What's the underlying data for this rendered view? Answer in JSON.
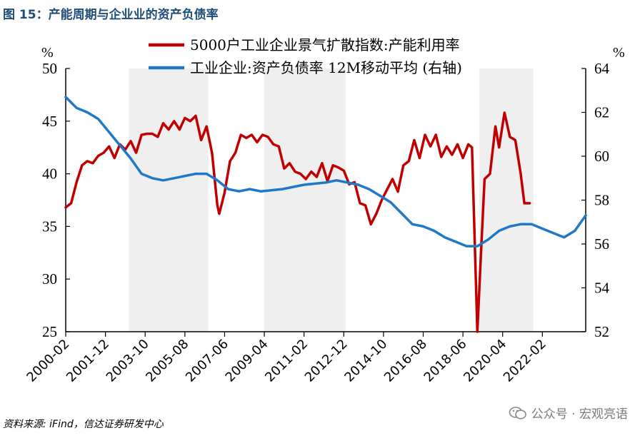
{
  "figure_title": "图 15：产能周期与企业业的资产负债率",
  "source": "资料来源: iFind，信达证券研发中心",
  "watermark": {
    "text": "公众号 · 宏观亮语",
    "icon": "wechat-icon"
  },
  "chart_data": {
    "type": "line",
    "left_axis": {
      "unit": "%",
      "ylim": [
        25,
        50
      ],
      "ticks": [
        25,
        30,
        35,
        40,
        45,
        50
      ]
    },
    "right_axis": {
      "unit": "%",
      "ylim": [
        52,
        64
      ],
      "ticks": [
        52,
        54,
        56,
        58,
        60,
        62,
        64
      ]
    },
    "x_range": [
      "2000-02",
      "2024-02"
    ],
    "x_ticks": [
      "2000-02",
      "2001-12",
      "2003-10",
      "2005-08",
      "2007-06",
      "2009-04",
      "2011-02",
      "2012-12",
      "2014-10",
      "2016-08",
      "2018-06",
      "2020-04",
      "2022-02"
    ],
    "shaded_periods": [
      [
        "2003-01",
        "2006-09"
      ],
      [
        "2009-04",
        "2013-01"
      ],
      [
        "2019-03",
        "2021-09"
      ]
    ],
    "legend_position": "top",
    "series": [
      {
        "name": "5000户工业企业景气扩散指数:产能利用率",
        "axis": "left",
        "color": "#c00000",
        "points": [
          [
            "2000-02",
            36.8
          ],
          [
            "2000-05",
            37.2
          ],
          [
            "2000-08",
            39.2
          ],
          [
            "2000-11",
            40.8
          ],
          [
            "2001-02",
            41.2
          ],
          [
            "2001-05",
            41.0
          ],
          [
            "2001-08",
            41.7
          ],
          [
            "2001-11",
            42.0
          ],
          [
            "2002-02",
            42.6
          ],
          [
            "2002-05",
            41.5
          ],
          [
            "2002-08",
            42.8
          ],
          [
            "2002-11",
            42.3
          ],
          [
            "2003-02",
            43.1
          ],
          [
            "2003-05",
            42.0
          ],
          [
            "2003-08",
            43.7
          ],
          [
            "2003-11",
            43.8
          ],
          [
            "2004-02",
            43.8
          ],
          [
            "2004-05",
            43.5
          ],
          [
            "2004-08",
            44.8
          ],
          [
            "2004-11",
            44.2
          ],
          [
            "2005-02",
            45.0
          ],
          [
            "2005-05",
            44.2
          ],
          [
            "2005-08",
            45.3
          ],
          [
            "2005-11",
            45.0
          ],
          [
            "2006-02",
            45.5
          ],
          [
            "2006-05",
            43.2
          ],
          [
            "2006-08",
            44.5
          ],
          [
            "2006-11",
            42.0
          ],
          [
            "2007-02",
            37.0
          ],
          [
            "2007-03",
            36.2
          ],
          [
            "2007-06",
            38.2
          ],
          [
            "2007-09",
            41.2
          ],
          [
            "2007-12",
            42.0
          ],
          [
            "2008-03",
            43.7
          ],
          [
            "2008-06",
            43.4
          ],
          [
            "2008-09",
            43.7
          ],
          [
            "2008-12",
            43.0
          ],
          [
            "2009-03",
            43.7
          ],
          [
            "2009-06",
            43.5
          ],
          [
            "2009-09",
            42.8
          ],
          [
            "2009-12",
            42.6
          ],
          [
            "2010-03",
            40.5
          ],
          [
            "2010-06",
            41.0
          ],
          [
            "2010-09",
            40.2
          ],
          [
            "2010-12",
            40.0
          ],
          [
            "2011-03",
            39.5
          ],
          [
            "2011-06",
            40.2
          ],
          [
            "2011-09",
            39.7
          ],
          [
            "2011-12",
            41.0
          ],
          [
            "2012-03",
            39.3
          ],
          [
            "2012-06",
            40.8
          ],
          [
            "2012-09",
            40.6
          ],
          [
            "2012-12",
            40.3
          ],
          [
            "2013-03",
            39.0
          ],
          [
            "2013-06",
            39.2
          ],
          [
            "2013-09",
            37.2
          ],
          [
            "2013-12",
            37.0
          ],
          [
            "2014-03",
            35.2
          ],
          [
            "2014-06",
            36.2
          ],
          [
            "2014-09",
            37.5
          ],
          [
            "2014-12",
            38.5
          ],
          [
            "2015-03",
            39.5
          ],
          [
            "2015-06",
            38.3
          ],
          [
            "2015-09",
            40.8
          ],
          [
            "2015-12",
            41.2
          ],
          [
            "2016-03",
            43.2
          ],
          [
            "2016-06",
            41.5
          ],
          [
            "2016-09",
            43.7
          ],
          [
            "2016-12",
            42.6
          ],
          [
            "2017-03",
            43.7
          ],
          [
            "2017-06",
            41.6
          ],
          [
            "2017-09",
            42.6
          ],
          [
            "2017-12",
            41.8
          ],
          [
            "2018-03",
            42.8
          ],
          [
            "2018-06",
            41.5
          ],
          [
            "2018-09",
            42.8
          ],
          [
            "2018-11",
            42.5
          ],
          [
            "2019-02",
            25.0
          ],
          [
            "2019-04",
            32.5
          ],
          [
            "2019-06",
            39.5
          ],
          [
            "2019-09",
            40.0
          ],
          [
            "2019-12",
            44.5
          ],
          [
            "2020-02",
            42.5
          ],
          [
            "2020-05",
            45.8
          ],
          [
            "2020-08",
            43.5
          ],
          [
            "2020-11",
            43.2
          ],
          [
            "2021-02",
            40.0
          ],
          [
            "2021-04",
            37.2
          ],
          [
            "2021-07",
            37.2
          ]
        ]
      },
      {
        "name": "工业企业:资产负债率 12M移动平均 (右轴)",
        "axis": "right",
        "color": "#1f78c8",
        "points": [
          [
            "2000-02",
            62.7
          ],
          [
            "2000-08",
            62.2
          ],
          [
            "2001-02",
            62.0
          ],
          [
            "2001-08",
            61.7
          ],
          [
            "2002-02",
            61.1
          ],
          [
            "2002-08",
            60.5
          ],
          [
            "2003-02",
            59.9
          ],
          [
            "2003-08",
            59.2
          ],
          [
            "2004-02",
            59.0
          ],
          [
            "2004-08",
            58.9
          ],
          [
            "2005-02",
            59.0
          ],
          [
            "2005-08",
            59.1
          ],
          [
            "2006-02",
            59.2
          ],
          [
            "2006-08",
            59.2
          ],
          [
            "2007-02",
            58.9
          ],
          [
            "2007-08",
            58.5
          ],
          [
            "2008-02",
            58.4
          ],
          [
            "2008-08",
            58.5
          ],
          [
            "2009-02",
            58.4
          ],
          [
            "2010-02",
            58.5
          ],
          [
            "2011-02",
            58.7
          ],
          [
            "2012-02",
            58.8
          ],
          [
            "2012-08",
            58.9
          ],
          [
            "2013-02",
            58.8
          ],
          [
            "2013-08",
            58.7
          ],
          [
            "2014-02",
            58.5
          ],
          [
            "2014-08",
            58.2
          ],
          [
            "2015-02",
            57.9
          ],
          [
            "2015-08",
            57.4
          ],
          [
            "2016-02",
            56.9
          ],
          [
            "2016-08",
            56.8
          ],
          [
            "2017-02",
            56.6
          ],
          [
            "2017-08",
            56.3
          ],
          [
            "2018-02",
            56.1
          ],
          [
            "2018-08",
            55.9
          ],
          [
            "2019-02",
            55.9
          ],
          [
            "2019-08",
            56.2
          ],
          [
            "2020-02",
            56.6
          ],
          [
            "2020-08",
            56.8
          ],
          [
            "2021-02",
            56.9
          ],
          [
            "2021-08",
            56.9
          ],
          [
            "2022-02",
            56.7
          ],
          [
            "2022-08",
            56.5
          ],
          [
            "2023-02",
            56.3
          ],
          [
            "2023-08",
            56.6
          ],
          [
            "2024-02",
            57.3
          ]
        ]
      }
    ]
  }
}
